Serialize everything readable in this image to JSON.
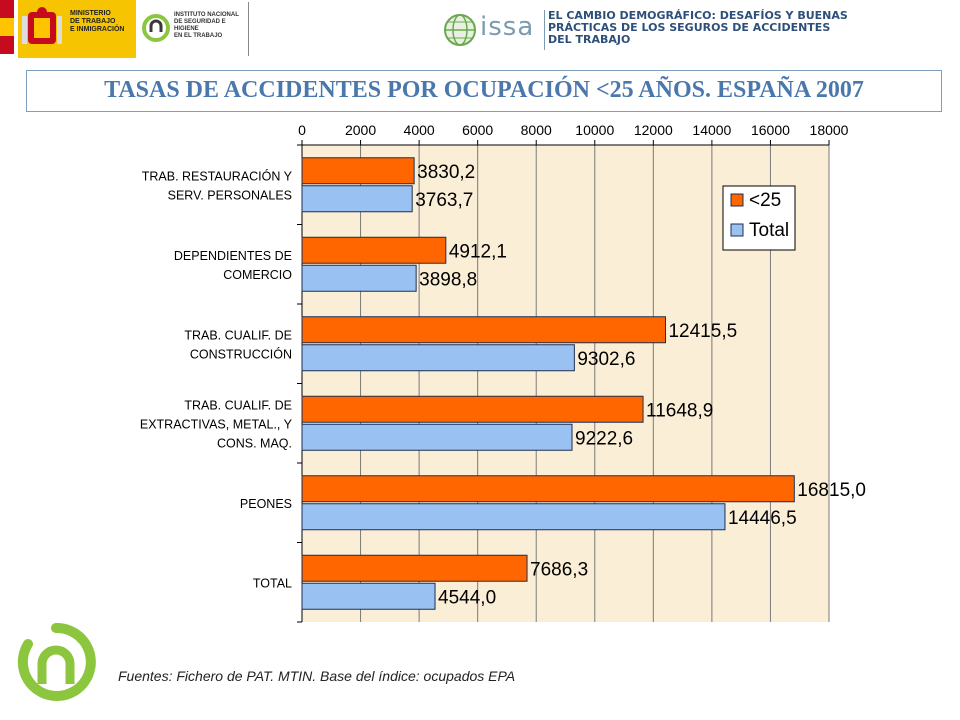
{
  "header": {
    "ministry_label": "MINISTERIO\nDE TRABAJO\nE INMIGRACIÓN",
    "institute_label": "INSTITUTO NACIONAL\nDE SEGURIDAD E HIGIENE\nEN EL TRABAJO",
    "issa_word": "issa",
    "conference_title": "EL CAMBIO DEMOGRÁFICO: DESAFÍOS Y BUENAS\nPRÁCTICAS DE LOS SEGUROS DE ACCIDENTES\nDEL TRABAJO"
  },
  "title": "TASAS DE ACCIDENTES POR OCUPACIÓN <25 AÑOS. ESPAÑA 2007",
  "source_note": "Fuentes: Fichero de PAT. MTIN. Base del índice: ocupados EPA",
  "colors": {
    "under25": "#ff6600",
    "total": "#99c2f2",
    "plot_bg": "#fbeed6",
    "title": "#4a78ad",
    "logo_green": "#8cc63f"
  },
  "chart_data": {
    "type": "bar",
    "orientation": "horizontal",
    "categories": [
      "TRAB. RESTAURACIÓN Y\nSERV. PERSONALES",
      "DEPENDIENTES DE\nCOMERCIO",
      "TRAB. CUALIF. DE\nCONSTRUCCIÓN",
      "TRAB. CUALIF. DE\nEXTRACTIVAS, METAL., Y\nCONS. MAQ.",
      "PEONES",
      "TOTAL"
    ],
    "series": [
      {
        "name": "<25",
        "values": [
          3830.2,
          4912.1,
          12415.5,
          11648.9,
          16815.0,
          7686.3
        ],
        "labels": [
          "3830,2",
          "4912,1",
          "12415,5",
          "11648,9",
          "16815,0",
          "7686,3"
        ]
      },
      {
        "name": "Total",
        "values": [
          3763.7,
          3898.8,
          9302.6,
          9222.6,
          14446.5,
          4544.0
        ],
        "labels": [
          "3763,7",
          "3898,8",
          "9302,6",
          "9222,6",
          "14446,5",
          "4544,0"
        ]
      }
    ],
    "xlim": [
      0,
      18000
    ],
    "xticks": [
      0,
      2000,
      4000,
      6000,
      8000,
      10000,
      12000,
      14000,
      16000,
      18000
    ],
    "axis_position": "top",
    "legend_position": "top-right",
    "grid": true
  }
}
